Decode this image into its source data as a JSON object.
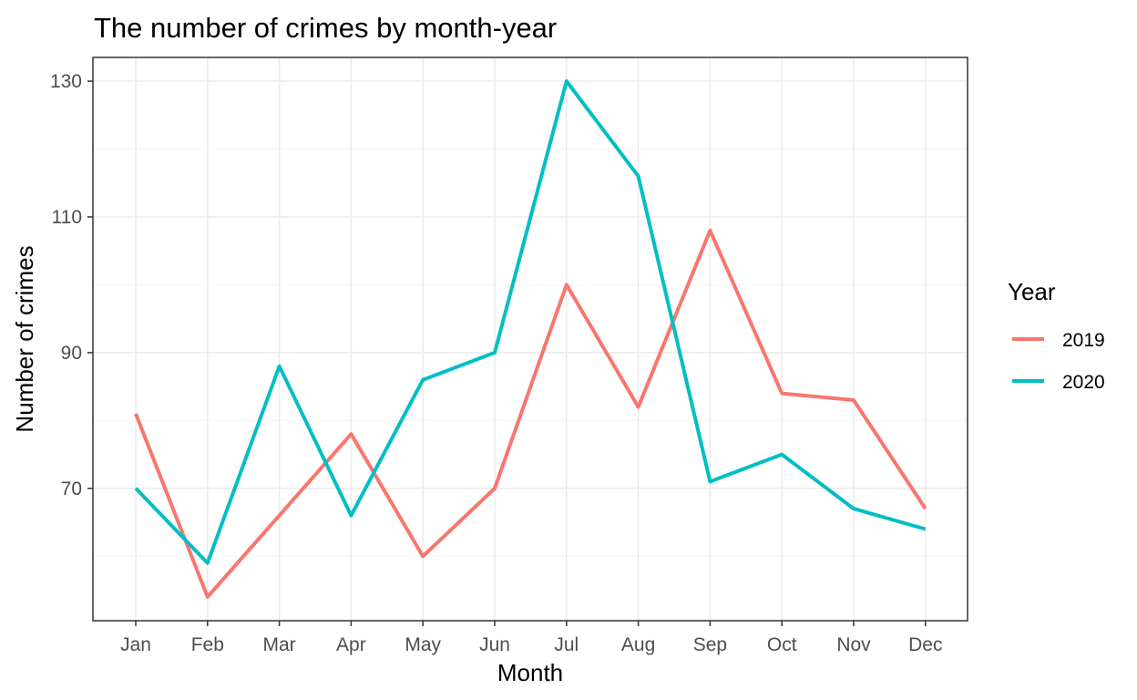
{
  "colors": {
    "2019": "#F8766D",
    "2020": "#00BFC4",
    "panel_border": "#333333",
    "grid_major": "#ebebeb",
    "grid_minor": "#f5f5f5"
  },
  "chart_data": {
    "type": "line",
    "title": "The number of crimes by month-year",
    "xlabel": "Month",
    "ylabel": "Number of crimes",
    "categories": [
      "Jan",
      "Feb",
      "Mar",
      "Apr",
      "May",
      "Jun",
      "Jul",
      "Aug",
      "Sep",
      "Oct",
      "Nov",
      "Dec"
    ],
    "ylim": [
      50.5,
      133.5
    ],
    "yticks": [
      70,
      90,
      110,
      130
    ],
    "ytick_labels": [
      "70",
      "90",
      "110",
      "130"
    ],
    "grid": true,
    "legend": {
      "title": "Year",
      "position": "right"
    },
    "series": [
      {
        "name": "2019",
        "values": [
          81,
          54,
          66,
          78,
          60,
          70,
          100,
          82,
          108,
          84,
          83,
          67
        ]
      },
      {
        "name": "2020",
        "values": [
          70,
          59,
          88,
          66,
          86,
          90,
          130,
          116,
          71,
          75,
          67,
          64
        ]
      }
    ]
  }
}
